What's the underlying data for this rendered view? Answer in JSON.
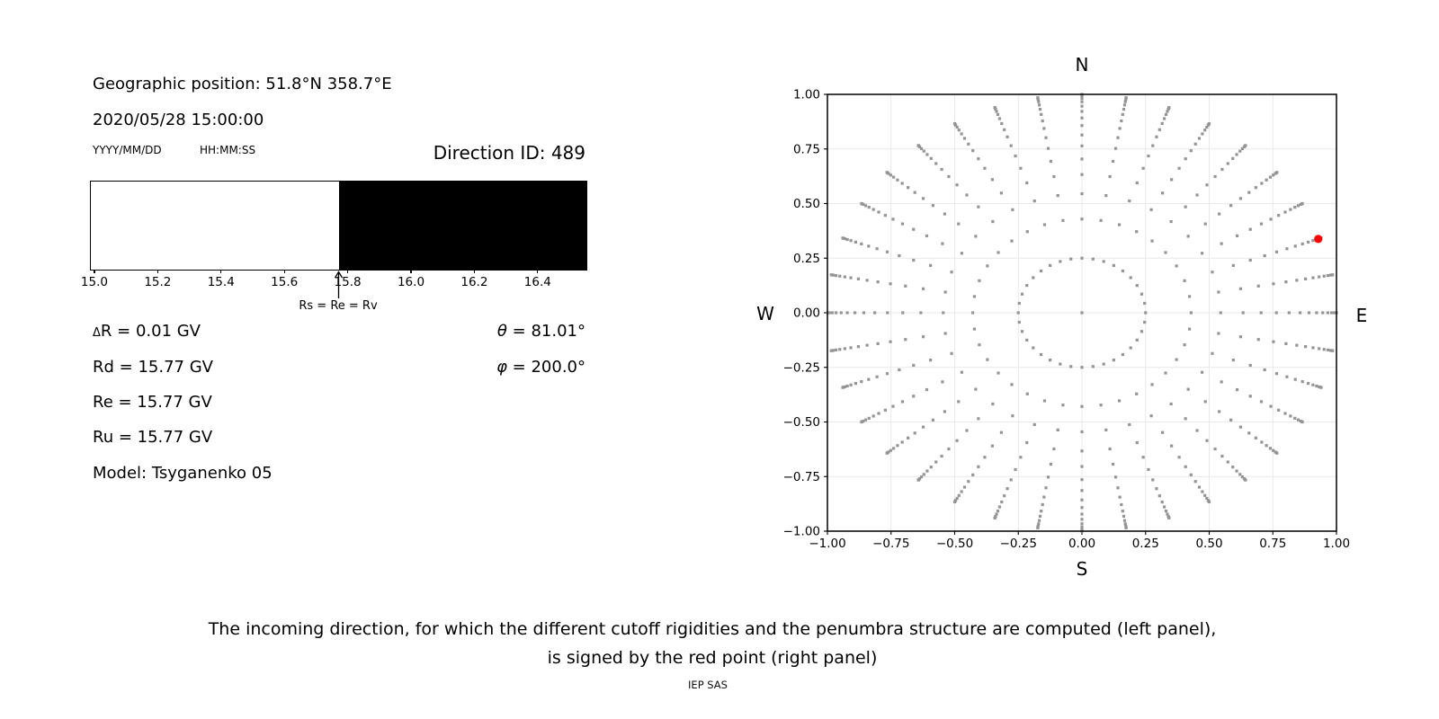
{
  "left_panel": {
    "geo_position": "Geographic position: 51.8°N 358.7°E",
    "datetime": "2020/05/28 15:00:00",
    "date_format_label": "YYYY/MM/DD",
    "time_format_label": "HH:MM:SS",
    "direction_id": "Direction ID: 489",
    "delta_r": {
      "sym": "Δ",
      "rest": "R = 0.01 GV"
    },
    "rd": "Rd = 15.77 GV",
    "re": "Re = 15.77 GV",
    "ru": "Ru = 15.77 GV",
    "model": "Model: Tsyganenko 05",
    "theta": {
      "sym": "θ",
      "rest": " = 81.01°"
    },
    "phi": {
      "sym": "φ",
      "rest": " = 200.0°"
    }
  },
  "caption": {
    "line1": "The incoming direction, for which the different cutoff rigidities and the penumbra structure are computed (left panel),",
    "line2": "is signed by the red point (right panel)",
    "credit": "IEP SAS"
  },
  "chart_data": [
    {
      "type": "bar",
      "xlim": [
        14.986,
        16.551
      ],
      "x_ticks": [
        15.0,
        15.2,
        15.4,
        15.6,
        15.8,
        16.0,
        16.2,
        16.4
      ],
      "tick_decimals": 1,
      "segments": [
        {
          "from": 14.986,
          "to": 15.77,
          "color": "#ffffff"
        },
        {
          "from": 15.77,
          "to": 16.551,
          "color": "#000000"
        }
      ],
      "annotation": {
        "x": 15.77,
        "label": "Rs = Re = Rv"
      }
    },
    {
      "type": "scatter",
      "xlim": [
        -1,
        1
      ],
      "ylim": [
        -1,
        1
      ],
      "x_ticks": [
        -1.0,
        -0.75,
        -0.5,
        -0.25,
        0.0,
        0.25,
        0.5,
        0.75,
        1.0
      ],
      "y_ticks": [
        -1.0,
        -0.75,
        -0.5,
        -0.25,
        0.0,
        0.25,
        0.5,
        0.75,
        1.0
      ],
      "tick_decimals": 2,
      "grid": true,
      "grid_color": "#e9e9e9",
      "compass": {
        "top": "N",
        "bottom": "S",
        "left": "W",
        "right": "E"
      },
      "azimuth_start_deg": 0,
      "azimuth_step_deg": 10,
      "azimuth_count": 36,
      "ring_radii": [
        0.25,
        0.429,
        0.545,
        0.633,
        0.704,
        0.764,
        0.814,
        0.857,
        0.892,
        0.922,
        0.946,
        0.966,
        0.981,
        0.992,
        0.998,
        1.0
      ],
      "center_dot": true,
      "dot_color": "#959595",
      "dot_size_px": 3.2,
      "red_point": {
        "azimuth_deg": 20,
        "radius": 0.988,
        "theta_deg": 81.01,
        "phi_deg": 200.0,
        "color": "#ff0000",
        "radius_px": 4.6
      }
    }
  ]
}
